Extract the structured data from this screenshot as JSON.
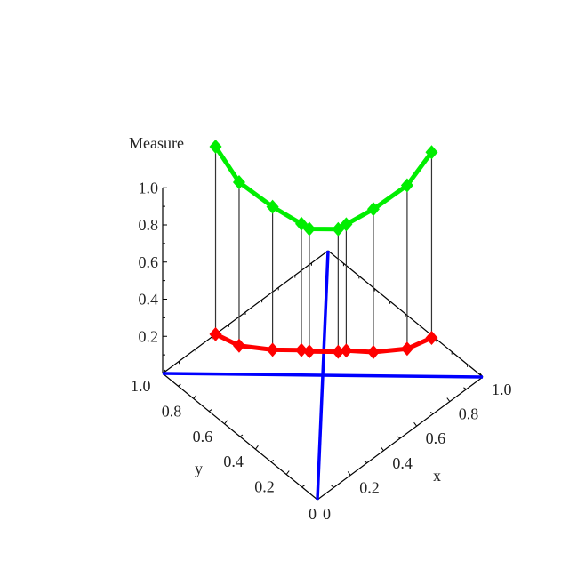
{
  "chart_data": {
    "type": "line3d",
    "zlabel": "Measure",
    "xlabel": "x",
    "ylabel": "y",
    "xlim": [
      0,
      1
    ],
    "ylim": [
      0,
      1
    ],
    "zlim": [
      0,
      1
    ],
    "x_ticks": [
      "0",
      "0.2",
      "0.4",
      "0.6",
      "0.8",
      "1.0"
    ],
    "y_ticks": [
      "0",
      "0.2",
      "0.4",
      "0.6",
      "0.8",
      "1.0"
    ],
    "z_ticks": [
      "0.2",
      "0.4",
      "0.6",
      "0.8",
      "1.0"
    ],
    "grid": false,
    "colors": {
      "upper": "#00ee00",
      "base": "#ff0000",
      "diagonals": "#0000ff",
      "axes": "#000000"
    },
    "points": [
      {
        "x": 0.32,
        "y": 1.0,
        "measure": 1.01
      },
      {
        "x": 0.35,
        "y": 0.88,
        "measure": 0.88
      },
      {
        "x": 0.44,
        "y": 0.76,
        "measure": 0.77
      },
      {
        "x": 0.53,
        "y": 0.67,
        "measure": 0.68
      },
      {
        "x": 0.55,
        "y": 0.64,
        "measure": 0.66
      },
      {
        "x": 0.64,
        "y": 0.55,
        "measure": 0.66
      },
      {
        "x": 0.67,
        "y": 0.53,
        "measure": 0.68
      },
      {
        "x": 0.75,
        "y": 0.44,
        "measure": 0.77
      },
      {
        "x": 0.87,
        "y": 0.35,
        "measure": 0.88
      },
      {
        "x": 0.99,
        "y": 0.32,
        "measure": 1.0
      }
    ]
  }
}
